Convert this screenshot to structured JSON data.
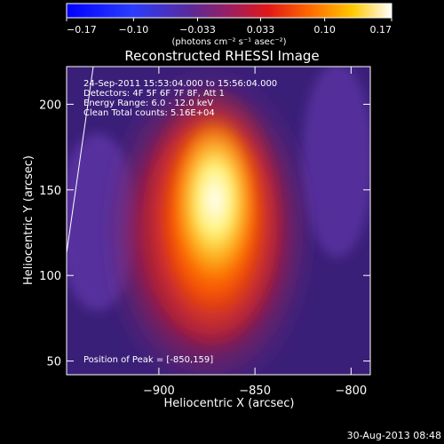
{
  "chart_data": {
    "type": "heatmap",
    "title": "Reconstructed RHESSI Image",
    "xlabel": "Heliocentric X (arcsec)",
    "ylabel": "Heliocentric Y (arcsec)",
    "xlim": [
      -948,
      -790
    ],
    "ylim": [
      42,
      222
    ],
    "x_ticks": [
      -900,
      -850,
      -800
    ],
    "x_tick_labels": [
      "−900",
      "−850",
      "−800"
    ],
    "y_ticks": [
      50,
      100,
      150,
      200
    ],
    "y_tick_labels": [
      "50",
      "100",
      "150",
      "200"
    ],
    "colorbar": {
      "range": [
        -0.17,
        0.17
      ],
      "ticks": [
        -0.17,
        -0.1,
        -0.033,
        0.033,
        0.1,
        0.17
      ],
      "tick_labels": [
        "−0.17",
        "−0.10",
        "−0.033",
        "0.033",
        "0.10",
        "0.17"
      ],
      "unit_label": "(photons cm⁻² s⁻¹ asec⁻²)"
    },
    "peak": [
      -850,
      159
    ],
    "annotations": {
      "time": "24-Sep-2011 15:53:04.000 to 15:56:04.000",
      "detectors": "Detectors: 4F 5F 6F 7F 8F, Att 1",
      "energy": "Energy Range: 6.0 - 12.0 keV",
      "clean": "Clean    Total counts: 5.16E+04",
      "peak_label": "Position of Peak = [-850,159]"
    },
    "timestamp": "30-Aug-2013 08:48",
    "grid": false
  }
}
